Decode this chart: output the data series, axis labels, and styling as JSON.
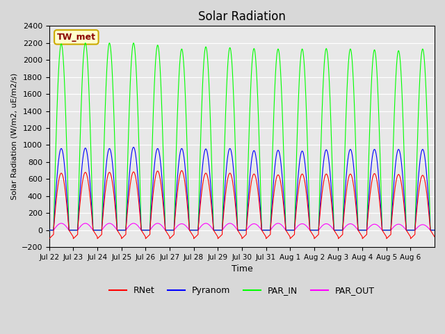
{
  "title": "Solar Radiation",
  "ylabel": "Solar Radiation (W/m2, uE/m2/s)",
  "xlabel": "Time",
  "ylim": [
    -200,
    2400
  ],
  "yticks": [
    -200,
    0,
    200,
    400,
    600,
    800,
    1000,
    1200,
    1400,
    1600,
    1800,
    2000,
    2200,
    2400
  ],
  "x_tick_labels": [
    "Jul 22",
    "Jul 23",
    "Jul 24",
    "Jul 25",
    "Jul 26",
    "Jul 27",
    "Jul 28",
    "Jul 29",
    "Jul 30",
    "Jul 31",
    "Aug 1",
    "Aug 2",
    "Aug 3",
    "Aug 4",
    "Aug 5",
    "Aug 6"
  ],
  "station_label": "TW_met",
  "colors": {
    "RNet": "#ff0000",
    "Pyranom": "#0000ff",
    "PAR_IN": "#00ff00",
    "PAR_OUT": "#ff00ff"
  },
  "legend_labels": [
    "RNet",
    "Pyranom",
    "PAR_IN",
    "PAR_OUT"
  ],
  "background_color": "#d8d8d8",
  "plot_bg_color": "#e8e8e8",
  "n_days": 16,
  "peaks": {
    "RNet": [
      670,
      680,
      680,
      685,
      695,
      700,
      670,
      670,
      660,
      650,
      660,
      660,
      660,
      665,
      655,
      645
    ],
    "Pyranom": [
      960,
      965,
      960,
      975,
      960,
      960,
      955,
      960,
      935,
      940,
      930,
      945,
      950,
      950,
      950,
      950
    ],
    "PAR_IN": [
      2190,
      2200,
      2200,
      2200,
      2175,
      2130,
      2155,
      2145,
      2135,
      2130,
      2130,
      2135,
      2130,
      2120,
      2110,
      2130
    ],
    "PAR_OUT": [
      80,
      80,
      80,
      80,
      80,
      75,
      80,
      80,
      75,
      80,
      75,
      75,
      75,
      70,
      70,
      65
    ]
  },
  "night_trough": {
    "RNet": -100,
    "Pyranom": 0,
    "PAR_IN": 0,
    "PAR_OUT": 0
  }
}
